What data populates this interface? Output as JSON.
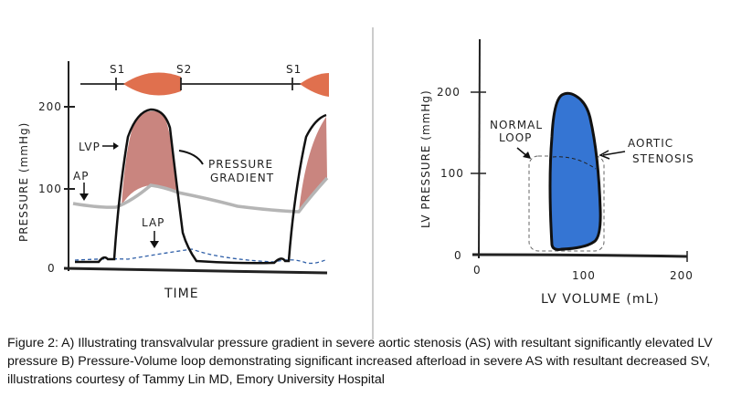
{
  "panel_a": {
    "heart_sounds": [
      "S1",
      "S2",
      "S1"
    ],
    "y_axis_label": "PRESSURE (mmHg)",
    "y_ticks": [
      "200",
      "100",
      "0"
    ],
    "x_axis_label": "TIME",
    "labels": {
      "lvp": "LVP",
      "ap": "AP",
      "lap": "LAP",
      "gradient_line1": "PRESSURE",
      "gradient_line2": "GRADIENT"
    },
    "colors": {
      "murmur": "#e0704e",
      "gradient_fill": "#c9857f",
      "ap_line": "#b5b5b5",
      "lap_line": "#2f5fa8"
    }
  },
  "panel_b": {
    "y_axis_label": "LV PRESSURE (mmHg)",
    "y_ticks": [
      "200",
      "100",
      "0"
    ],
    "x_axis_label": "LV VOLUME (mL)",
    "x_ticks": [
      "0",
      "100",
      "200"
    ],
    "labels": {
      "normal_line1": "NORMAL",
      "normal_line2": "LOOP",
      "as_line1": "AORTIC",
      "as_line2": "STENOSIS"
    },
    "colors": {
      "as_loop": "#3575d3"
    }
  },
  "caption": "Figure 2: A) Illustrating transvalvular pressure gradient in severe aortic stenosis (AS) with resultant significantly elevated LV pressure B) Pressure-Volume loop demonstrating significant increased afterload in severe AS with resultant decreased SV,  illustrations courtesy of Tammy Lin MD, Emory University Hospital"
}
